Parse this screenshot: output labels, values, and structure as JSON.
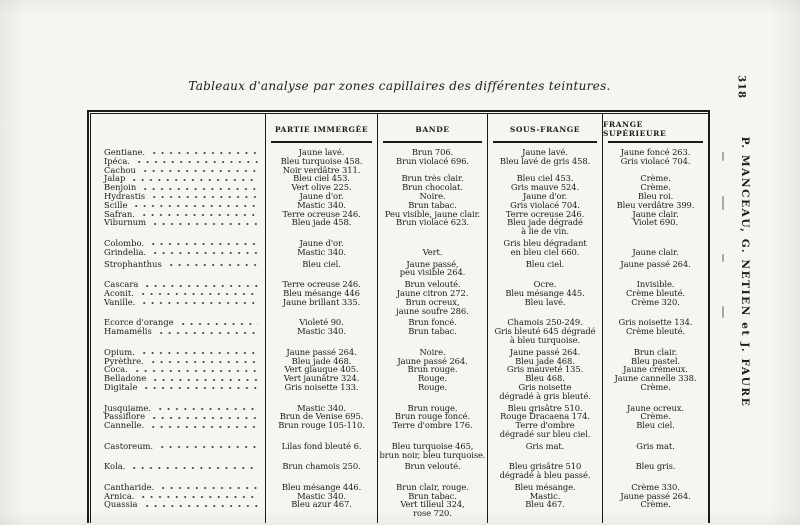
{
  "page": {
    "title": "Tableaux d'analyse par zones capillaires des différentes teintures.",
    "number": "318",
    "margin_authors": "P. MANCEAU, G. NETIEN et J. FAURE"
  },
  "table": {
    "headers": {
      "col1": "",
      "col2": "PARTIE IMMERGÉE",
      "col3": "BANDE",
      "col4": "SOUS-FRANGE",
      "col5": "FRANGE SUPÉRIEURE"
    },
    "groups": [
      {
        "names": [
          "Gentiane.",
          "Ipéca.",
          "Cachou",
          "Jalap",
          "Benjoin",
          "Hydrastis",
          "Scille",
          "Safran.",
          "Viburnum",
          ""
        ],
        "partie_immergee": [
          "Jaune lavé.",
          "Bleu turquoise 458.",
          "Noir verdâtre 311.",
          "Bleu ciel 453.",
          "Vert olive 225.",
          "Jaune d'or.",
          "Mastic 340.",
          "Terre ocreuse 246.",
          "Bleu jade 458.",
          ""
        ],
        "bande": [
          "Brun 706.",
          "Brun violacé 696.",
          "",
          "Brun très clair.",
          "Brun chocolat.",
          "Noire.",
          "Brun tabac.",
          "Peu visible, jaune clair.",
          "Brun violacé 623.",
          ""
        ],
        "sous_frange": [
          "Jaune lavé.",
          "Bleu lavé de gris 458.",
          "",
          "Bleu ciel 453.",
          "Gris mauve 524.",
          "Jaune d'or.",
          "Gris violacé 704.",
          "Terre ocreuse 246.",
          "Bleu jade dégradé",
          "à lie de vin."
        ],
        "frange_superieure": [
          "Jaune foncé 263.",
          "Gris violacé 704.",
          "",
          "Crème.",
          "Crème.",
          "Bleu roi.",
          "Bleu verdâtre 399.",
          "Jaune clair.",
          "Violet 690.",
          ""
        ]
      },
      {
        "names": [
          "Colombo.",
          "Grindelia."
        ],
        "partie_immergee": [
          "Jaune d'or.",
          "Mastic 340."
        ],
        "bande": [
          "",
          "Vert."
        ],
        "sous_frange": [
          "Gris bleu dégradant",
          "en bleu ciel 660."
        ],
        "frange_superieure": [
          "",
          "Jaune clair."
        ]
      },
      {
        "names": [
          "Strophanthus",
          ""
        ],
        "partie_immergee": [
          "Bleu ciel.",
          ""
        ],
        "bande": [
          "Jaune passé,",
          "peu visible 264."
        ],
        "sous_frange": [
          "Bleu ciel.",
          ""
        ],
        "frange_superieure": [
          "Jaune passé 264.",
          ""
        ]
      },
      {
        "names": [
          "Cascara",
          "Aconit.",
          "Vanille.",
          ""
        ],
        "partie_immergee": [
          "Terre ocreuse 246.",
          "Bleu mésange 446",
          "Jaune brillant 335.",
          ""
        ],
        "bande": [
          "Brun velouté.",
          "Jaune citron 272.",
          "Brun ocreux,",
          "jaune soufre 286."
        ],
        "sous_frange": [
          "Ocre.",
          "Bleu mésange 445.",
          "Bleu lavé.",
          ""
        ],
        "frange_superieure": [
          "Invisible.",
          "Crème bleuté.",
          "Crème 320.",
          ""
        ]
      },
      {
        "names": [
          "Ecorce d'orange",
          "Hamamélis",
          ""
        ],
        "partie_immergee": [
          "Violeté 90.",
          "Mastic 340.",
          ""
        ],
        "bande": [
          "Brun foncé.",
          "Brun tabac.",
          ""
        ],
        "sous_frange": [
          "Chamois 250-249.",
          "Gris bleuté 645 dégradé",
          "à bleu turquoise."
        ],
        "frange_superieure": [
          "Gris noisette 134.",
          "Crème bleuté.",
          ""
        ]
      },
      {
        "names": [
          "Opium.",
          "Pyrèthre.",
          "Coca.",
          "Belladone",
          "Digitale",
          ""
        ],
        "partie_immergee": [
          "Jaune passé 264.",
          "Bleu jade 468.",
          "Vert glauque 405.",
          "Vert jaunâtre 324.",
          "Gris noisette 133.",
          ""
        ],
        "bande": [
          "Noire.",
          "Jaune passé 264.",
          "Brun rouge.",
          "Rouge.",
          "Rouge.",
          ""
        ],
        "sous_frange": [
          "Jaune passé 264.",
          "Bleu jade 468.",
          "Gris mauveté 135.",
          "Bleu 468.",
          "Gris noisette",
          "dégradé à gris bleuté."
        ],
        "frange_superieure": [
          "Brun clair.",
          "Bleu pastel.",
          "Jaune crémeux.",
          "Jaune cannelle 338.",
          "Crème.",
          ""
        ]
      },
      {
        "names": [
          "Jusquiame.",
          "Passiflore",
          "Cannelle.",
          ""
        ],
        "partie_immergee": [
          "Mastic 340.",
          "Brun de Venise 695.",
          "Brun rouge 105-110.",
          ""
        ],
        "bande": [
          "Brun rouge.",
          "Brun rouge foncé.",
          "Terre d'ombre 176.",
          ""
        ],
        "sous_frange": [
          "Bleu grisâtre 510.",
          "Rouge Dracaena 174.",
          "Terre d'ombre",
          "dégradé sur bleu ciel."
        ],
        "frange_superieure": [
          "Jaune ocreux.",
          "Crème.",
          "Bleu ciel.",
          ""
        ]
      },
      {
        "names": [
          "Castoreum.",
          ""
        ],
        "partie_immergee": [
          "Lilas fond bleuté 6.",
          ""
        ],
        "bande": [
          "Bleu turquoise 465,",
          "brun noir, bleu turquoise."
        ],
        "sous_frange": [
          "Gris mat.",
          ""
        ],
        "frange_superieure": [
          "Gris mat.",
          ""
        ]
      },
      {
        "names": [
          "Kola.",
          ""
        ],
        "partie_immergee": [
          "Brun chamois 250.",
          ""
        ],
        "bande": [
          "Brun velouté.",
          ""
        ],
        "sous_frange": [
          "Bleu grisâtre 510",
          "dégradé à bleu passé."
        ],
        "frange_superieure": [
          "Bleu gris.",
          ""
        ]
      },
      {
        "names": [
          "Cantharide.",
          "Arnica.",
          "Quassia",
          ""
        ],
        "partie_immergee": [
          "Bleu mésange 446.",
          "Mastic 340.",
          "Bleu azur 467.",
          ""
        ],
        "bande": [
          "Brun clair, rouge.",
          "Brun tabac.",
          "Vert tilleul 324,",
          "rose 720."
        ],
        "sous_frange": [
          "Bleu mésange.",
          "Mastic.",
          "Bleu 467.",
          ""
        ],
        "frange_superieure": [
          "Crème 330.",
          "Jaune passé 264.",
          "Crème.",
          ""
        ]
      }
    ]
  }
}
